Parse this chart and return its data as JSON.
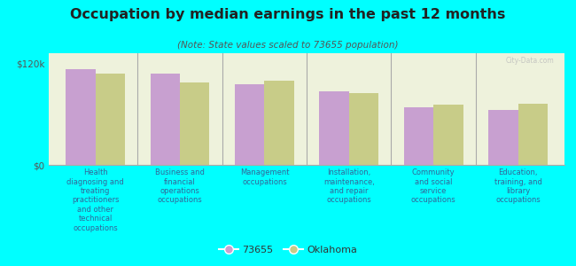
{
  "title": "Occupation by median earnings in the past 12 months",
  "subtitle": "(Note: State values scaled to 73655 population)",
  "background_color": "#00FFFF",
  "plot_bg_color": "#eef2dc",
  "categories": [
    "Health\ndiagnosing and\ntreating\npractitioners\nand other\ntechnical\noccupations",
    "Business and\nfinancial\noperations\noccupations",
    "Management\noccupations",
    "Installation,\nmaintenance,\nand repair\noccupations",
    "Community\nand social\nservice\noccupations",
    "Education,\ntraining, and\nlibrary\noccupations"
  ],
  "values_73655": [
    113000,
    108000,
    95000,
    87000,
    68000,
    65000
  ],
  "values_oklahoma": [
    108000,
    97000,
    100000,
    85000,
    71000,
    72000
  ],
  "color_73655": "#c8a0d0",
  "color_oklahoma": "#c8cc88",
  "ylabel_ticks": [
    "$0",
    "$120k"
  ],
  "ytick_values": [
    0,
    120000
  ],
  "legend_73655": "73655",
  "legend_oklahoma": "Oklahoma",
  "watermark": "City-Data.com",
  "title_color": "#222222",
  "subtitle_color": "#555555",
  "tick_label_color": "#336699",
  "ytick_color": "#555555"
}
